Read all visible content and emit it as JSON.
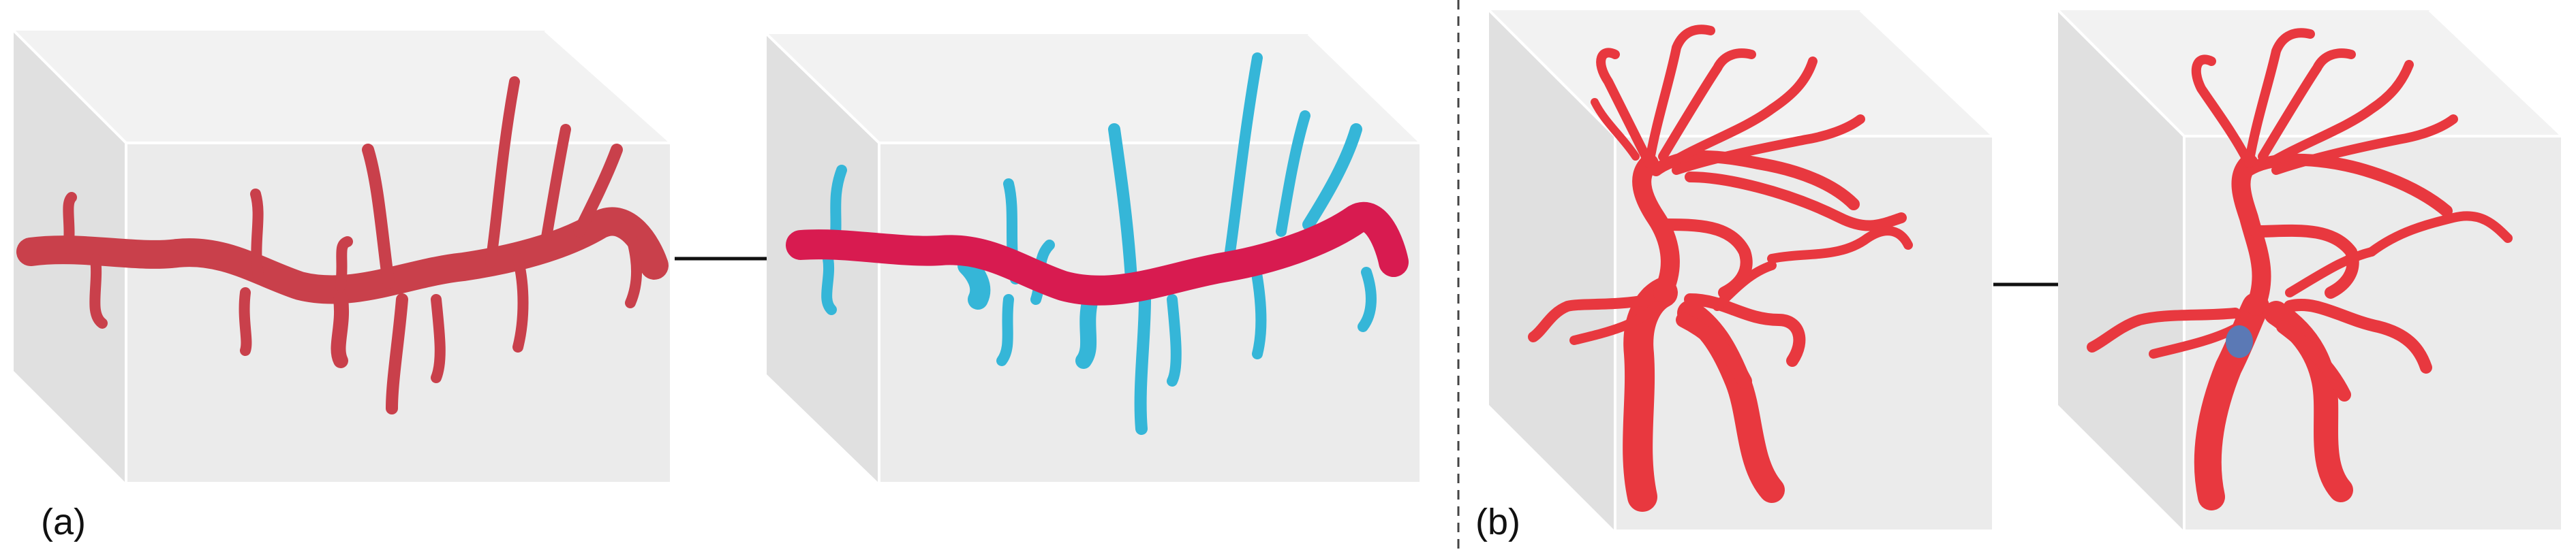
{
  "figure": {
    "panel_a": {
      "label": "(a)"
    },
    "panel_b": {
      "label": "(b)"
    },
    "colors": {
      "background": "#ffffff",
      "box_front": "#ebebeb",
      "box_top": "#f2f2f2",
      "box_side": "#e0e0e0",
      "box_edge": "#ffffff",
      "dendrite_red": "#c9404b",
      "dendrite_crimson": "#d81b50",
      "spine_cyan": "#35b6d8",
      "vessel_red": "#e8383f",
      "marker_blue": "#5b79b5",
      "arrow": "#111111",
      "divider": "#444444"
    },
    "icons": [
      "right-arrow-icon",
      "right-arrow-icon",
      "dashed-divider"
    ]
  }
}
